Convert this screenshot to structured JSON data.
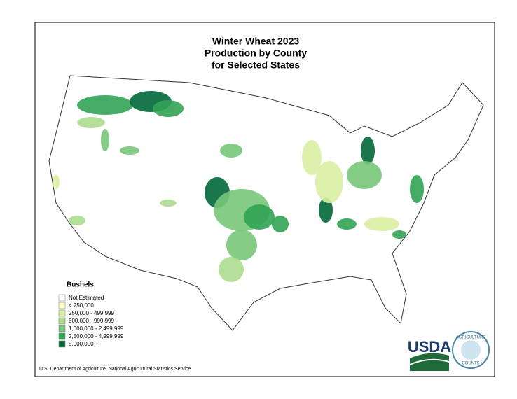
{
  "title": [
    "Winter Wheat 2023",
    "Production by County",
    "for Selected States"
  ],
  "legend": {
    "title": "Bushels",
    "items": [
      {
        "label": "Not Estimated",
        "color": "#ffffff"
      },
      {
        "label": "< 250,000",
        "color": "#ffffcc"
      },
      {
        "label": "250,000 - 499,999",
        "color": "#d9f0a3"
      },
      {
        "label": "500,000 - 999,999",
        "color": "#addd8e"
      },
      {
        "label": "1,000,000 - 2,499,999",
        "color": "#78c679"
      },
      {
        "label": "2,500,000 - 4,999,999",
        "color": "#31a354"
      },
      {
        "label": "5,000,000 +",
        "color": "#006837"
      }
    ]
  },
  "source": "U.S. Department of Agriculture, National Agricultural Statistics Service",
  "logo": {
    "usda": "USDA",
    "ring_top": "AGRICULTURE",
    "ring_bottom": "COUNTS"
  }
}
